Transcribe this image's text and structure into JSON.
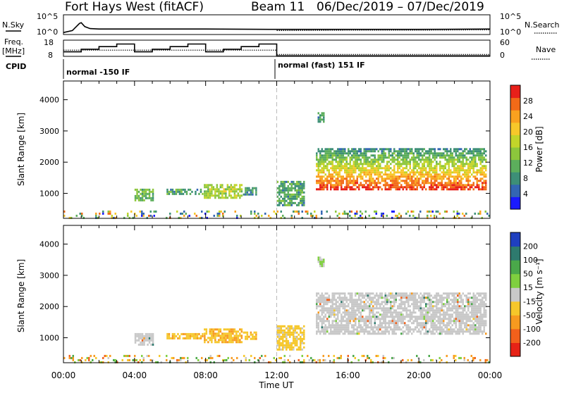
{
  "header": {
    "station": "Fort Hays West (fitACF)",
    "beam": "Beam 11",
    "dates": "06/Dec/2019 – 07/Dec/2019"
  },
  "panel_labels": {
    "nsky": "N.Sky",
    "freq_top": "Freq.",
    "freq_unit": "[MHz]",
    "cpid": "CPID",
    "nsearch": "N.Search",
    "nave": "Nave"
  },
  "cpid_modes": [
    "normal -150 IF",
    "normal (fast) 151 IF"
  ],
  "x_axis": {
    "label": "Time UT",
    "ticks": [
      "00:00",
      "04:00",
      "08:00",
      "12:00",
      "16:00",
      "20:00",
      "00:00"
    ]
  },
  "power_colorbar": {
    "label": "Power [dB]",
    "ticks": [
      "4",
      "8",
      "12",
      "16",
      "20",
      "24",
      "28"
    ],
    "colors": [
      "#1a1aff",
      "#3366b3",
      "#3d8f77",
      "#5cae5c",
      "#8cc63c",
      "#c2d52a",
      "#f7c82a",
      "#f9a11f",
      "#f26a18",
      "#e8201a"
    ]
  },
  "velocity_colorbar": {
    "label": "Velocity [m s⁻¹]",
    "ticks": [
      "200",
      "100",
      "50",
      "15",
      "-15",
      "-50",
      "-100",
      "-200"
    ],
    "colors": [
      "#1f3fbf",
      "#2e7a6e",
      "#4aa84a",
      "#7fcf3f",
      "#c8c8c8",
      "#f6c72a",
      "#f79a1f",
      "#f2601b",
      "#e62216"
    ],
    "ground_scatter_color": "#c8c8c8"
  },
  "chart_data": [
    {
      "type": "line",
      "title": "N.Sky / N.Search",
      "ylabel_left": "N.Sky",
      "ylabel_right": "N.Search",
      "left_ticks": [
        "10^5",
        "10^0"
      ],
      "right_ticks": [
        "10^5",
        "10^0"
      ],
      "x_hours": [
        0,
        0.5,
        0.9,
        1.0,
        1.2,
        1.5,
        2,
        4,
        8,
        12,
        16,
        20,
        24
      ],
      "series": [
        {
          "name": "N.Sky",
          "values_log10": [
            0.5,
            1.0,
            2.8,
            3.0,
            2.0,
            1.5,
            1.4,
            1.4,
            1.4,
            1.3,
            1.3,
            1.3,
            1.4
          ]
        },
        {
          "name": "N.Search",
          "values_log10": [
            null,
            null,
            null,
            null,
            null,
            null,
            null,
            null,
            null,
            1.0,
            1.1,
            1.1,
            1.2
          ]
        }
      ]
    },
    {
      "type": "line",
      "title": "Freq / Nave",
      "ylabel_left": "Freq. [MHz]",
      "ylabel_right": "Nave",
      "left_ticks": [
        "18",
        "8"
      ],
      "right_ticks": [
        "60",
        "0"
      ],
      "freq_steps_mhz": [
        {
          "start": 0.0,
          "end": 1.0,
          "value": 10.8
        },
        {
          "start": 1.0,
          "end": 2.0,
          "value": 12.4
        },
        {
          "start": 2.0,
          "end": 3.0,
          "value": 14.0
        },
        {
          "start": 3.0,
          "end": 4.0,
          "value": 15.6
        },
        {
          "start": 4.0,
          "end": 5.0,
          "value": 10.8
        },
        {
          "start": 5.0,
          "end": 6.0,
          "value": 12.4
        },
        {
          "start": 6.0,
          "end": 7.0,
          "value": 14.0
        },
        {
          "start": 7.0,
          "end": 8.0,
          "value": 15.6
        },
        {
          "start": 8.0,
          "end": 9.0,
          "value": 10.8
        },
        {
          "start": 9.0,
          "end": 10.0,
          "value": 12.4
        },
        {
          "start": 10.0,
          "end": 11.0,
          "value": 14.0
        },
        {
          "start": 11.0,
          "end": 12.0,
          "value": 15.6
        },
        {
          "start": 12.0,
          "end": 24.0,
          "value": 8.3
        }
      ],
      "nave_level_before_12": 23,
      "nave_level_after_12": 7
    },
    {
      "type": "heatmap",
      "title": "Power",
      "ylabel": "Slant Range [km]",
      "yticks": [
        1000,
        2000,
        3000,
        4000
      ],
      "ylim": [
        200,
        4600
      ],
      "xlim_hours": [
        0,
        24
      ],
      "scatter_regions": [
        {
          "t0": 0.0,
          "t1": 24.0,
          "r0": 200,
          "r1": 450,
          "kind": "ground_noise",
          "level": 10
        },
        {
          "t0": 4.0,
          "t1": 5.0,
          "r0": 750,
          "r1": 1150,
          "kind": "patch",
          "level": 12
        },
        {
          "t0": 5.8,
          "t1": 7.8,
          "r0": 1000,
          "r1": 1150,
          "kind": "patch",
          "level": 10
        },
        {
          "t0": 7.9,
          "t1": 10.0,
          "r0": 850,
          "r1": 1300,
          "kind": "patch",
          "level": 16
        },
        {
          "t0": 10.1,
          "t1": 10.8,
          "r0": 950,
          "r1": 1200,
          "kind": "patch",
          "level": 8
        },
        {
          "t0": 12.0,
          "t1": 13.5,
          "r0": 650,
          "r1": 1400,
          "kind": "patch",
          "level": 10
        },
        {
          "t0": 14.2,
          "t1": 23.8,
          "r0": 1150,
          "r1": 2450,
          "kind": "band",
          "level": 18
        },
        {
          "t0": 14.3,
          "t1": 14.6,
          "r0": 3300,
          "r1": 3600,
          "kind": "patch",
          "level": 10
        }
      ]
    },
    {
      "type": "heatmap",
      "title": "Velocity",
      "ylabel": "Slant Range [km]",
      "yticks": [
        1000,
        2000,
        3000,
        4000
      ],
      "ylim": [
        200,
        4600
      ],
      "xlim_hours": [
        0,
        24
      ],
      "scatter_regions": [
        {
          "t0": 0.0,
          "t1": 24.0,
          "r0": 200,
          "r1": 450,
          "kind": "ground_noise",
          "level": -30
        },
        {
          "t0": 4.0,
          "t1": 5.0,
          "r0": 750,
          "r1": 1150,
          "kind": "ground",
          "level": 0
        },
        {
          "t0": 5.8,
          "t1": 7.8,
          "r0": 950,
          "r1": 1150,
          "kind": "patch",
          "level": -40
        },
        {
          "t0": 7.9,
          "t1": 10.0,
          "r0": 850,
          "r1": 1300,
          "kind": "patch",
          "level": -45
        },
        {
          "t0": 10.1,
          "t1": 10.8,
          "r0": 950,
          "r1": 1200,
          "kind": "patch",
          "level": -35
        },
        {
          "t0": 12.0,
          "t1": 13.5,
          "r0": 650,
          "r1": 1400,
          "kind": "patch",
          "level": -30
        },
        {
          "t0": 14.2,
          "t1": 23.8,
          "r0": 1150,
          "r1": 2450,
          "kind": "ground",
          "level": 0
        },
        {
          "t0": 14.3,
          "t1": 14.6,
          "r0": 3300,
          "r1": 3600,
          "kind": "patch",
          "level": 20
        }
      ]
    }
  ]
}
